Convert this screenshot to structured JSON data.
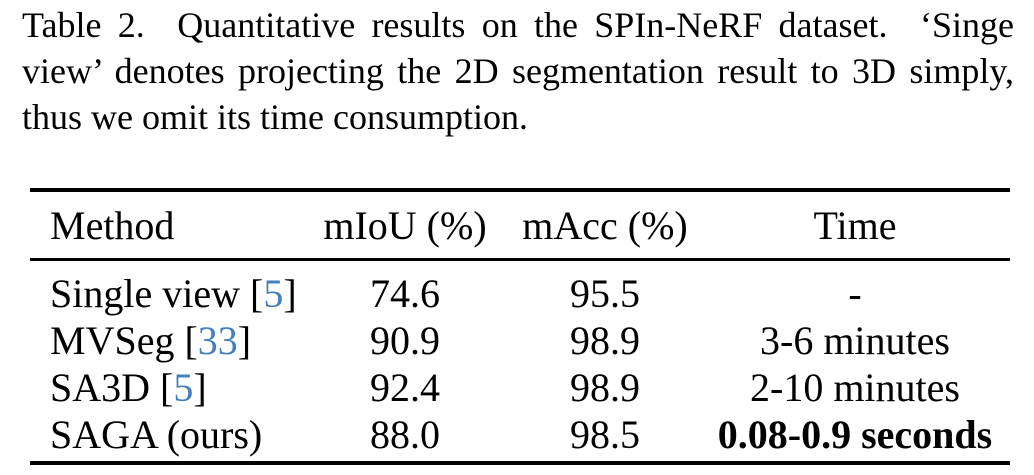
{
  "caption": {
    "lines": [
      "Table 2.  Quantitative results on the SPIn-NeRF dataset.  ‘Singe",
      "view’ denotes projecting the 2D segmentation result to 3D simply,",
      "thus we omit its time consumption."
    ]
  },
  "table": {
    "columns": [
      "Method",
      "mIoU (%)",
      "mAcc (%)",
      "Time"
    ],
    "rows": [
      {
        "method": "Single view ",
        "lb": "[",
        "cite": "5",
        "rb": "]",
        "miou": "74.6",
        "macc": "95.5",
        "time": "-"
      },
      {
        "method": "MVSeg ",
        "lb": "[",
        "cite": "33",
        "rb": "]",
        "miou": "90.9",
        "macc": "98.9",
        "time": "3-6 minutes"
      },
      {
        "method": "SA3D ",
        "lb": "[",
        "cite": "5",
        "rb": "]",
        "miou": "92.4",
        "macc": "98.9",
        "time": "2-10 minutes"
      },
      {
        "method": "SAGA (ours)",
        "miou": "88.0",
        "macc": "98.5",
        "time": "0.08-0.9 seconds"
      }
    ],
    "colors": {
      "citation": "#4180bd",
      "text": "#000000"
    }
  }
}
